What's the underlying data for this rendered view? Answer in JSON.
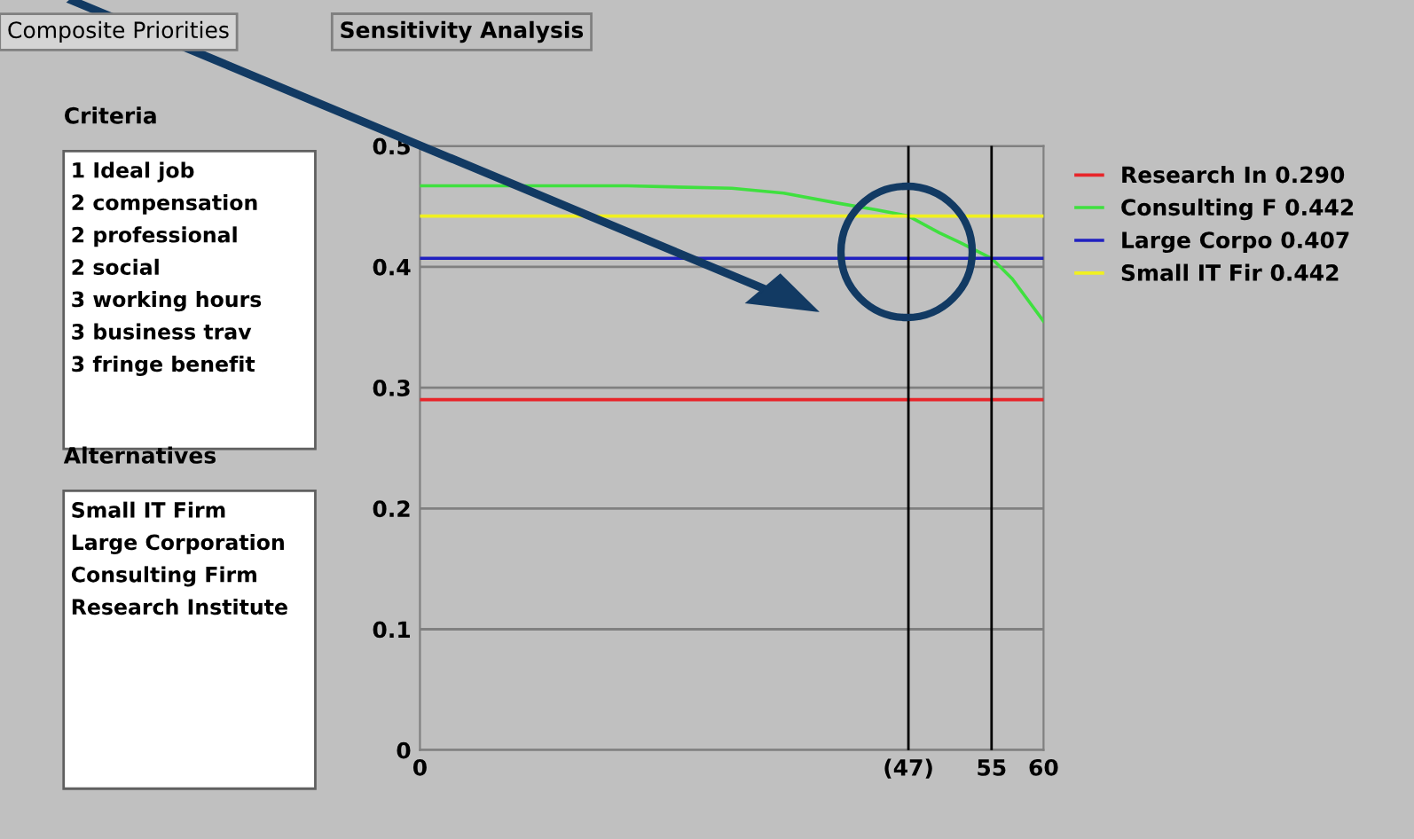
{
  "chart_data": [
    {
      "type": "other",
      "annotations": [
        "Composite Priorities",
        "Sensitivity Analysis"
      ]
    },
    {
      "type": "other",
      "title": "Criteria",
      "annotations": [
        "1 Ideal job",
        "2 compensation",
        "2 professional",
        "2 social",
        "3 working hours",
        "3 business trav",
        "3 fringe benefit"
      ]
    },
    {
      "type": "other",
      "title": "Alternatives",
      "annotations": [
        "Small IT Firm",
        "Large Corporation",
        "Consulting Firm",
        "Research Institute"
      ]
    },
    {
      "type": "line",
      "xlim": [
        0,
        60
      ],
      "ylim": [
        0,
        0.5
      ],
      "xticks": [
        0,
        {
          "value": 47,
          "label": "(47)"
        },
        55,
        60
      ],
      "yticks": [
        0,
        0.1,
        0.2,
        0.3,
        0.4,
        0.5
      ],
      "grid": "y",
      "legend": "right",
      "marker": "none",
      "line_style": "solid",
      "ref_lines": [
        {
          "axis": "x",
          "value": 47,
          "color": "#000000"
        },
        {
          "axis": "x",
          "value": 55,
          "color": "#000000"
        }
      ],
      "series": [
        {
          "name": "Research In 0.290",
          "color": "#e8252a",
          "x": [
            0,
            60
          ],
          "values": [
            0.29,
            0.29
          ]
        },
        {
          "name": "Consulting F 0.442",
          "color": "#3fe03f",
          "x": [
            0,
            20,
            30,
            35,
            40,
            44,
            47,
            50,
            52,
            55,
            57,
            60
          ],
          "values": [
            0.467,
            0.467,
            0.465,
            0.461,
            0.453,
            0.447,
            0.442,
            0.428,
            0.42,
            0.407,
            0.39,
            0.355
          ]
        },
        {
          "name": "Large Corpo 0.407",
          "color": "#2020c0",
          "x": [
            0,
            60
          ],
          "values": [
            0.407,
            0.407
          ]
        },
        {
          "name": "Small IT Fir 0.442",
          "color": "#f0f020",
          "x": [
            0,
            60
          ],
          "values": [
            0.442,
            0.442
          ]
        }
      ]
    }
  ]
}
